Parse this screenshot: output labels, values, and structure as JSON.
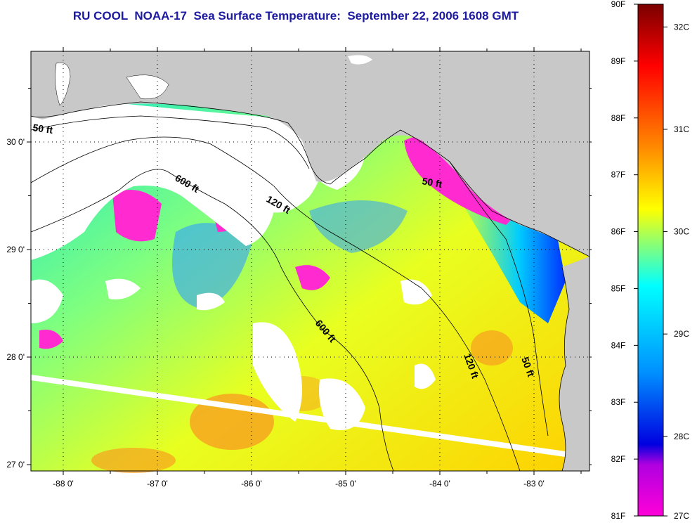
{
  "title": "RU COOL  NOAA-17  Sea Surface Temperature:  September 22, 2006 1608 GMT",
  "map": {
    "x_ticks": [
      {
        "lon": -88,
        "label": "-88 0'"
      },
      {
        "lon": -87,
        "label": "-87 0'"
      },
      {
        "lon": -86,
        "label": "-86 0'"
      },
      {
        "lon": -85,
        "label": "-85 0'"
      },
      {
        "lon": -84,
        "label": "-84 0'"
      },
      {
        "lon": -83,
        "label": "-83 0'"
      }
    ],
    "y_ticks": [
      {
        "lat": 30,
        "label": "30 0'"
      },
      {
        "lat": 29,
        "label": "29 0'"
      },
      {
        "lat": 28,
        "label": "28 0'"
      },
      {
        "lat": 27,
        "label": "27 0'"
      }
    ],
    "contour_labels": [
      "50 ft",
      "600 ft",
      "120 ft",
      "50 ft",
      "600 ft",
      "120 ft",
      "50 ft"
    ],
    "colors": {
      "land": "#c8c8c8",
      "cloud": "#ffffff",
      "grid": "#000000"
    }
  },
  "colorbar": {
    "fahrenheit_labels": [
      "90F",
      "89F",
      "88F",
      "87F",
      "86F",
      "85F",
      "84F",
      "83F",
      "82F",
      "81F"
    ],
    "celsius_labels": [
      "32C",
      "31C",
      "30C",
      "29C",
      "28C",
      "27C"
    ],
    "stops": [
      "#8b0000",
      "#ff0000",
      "#ff8c00",
      "#ffff00",
      "#00ffff",
      "#0000ff",
      "#ff00ff"
    ]
  }
}
